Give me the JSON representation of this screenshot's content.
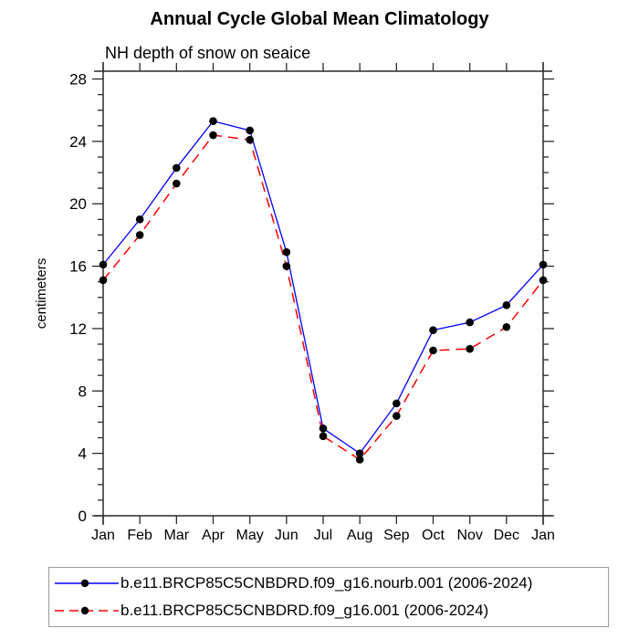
{
  "title": "Annual Cycle Global Mean Climatology",
  "subtitle": "NH depth of snow on seaice",
  "chart_data": {
    "type": "line",
    "x": [
      "Jan",
      "Feb",
      "Mar",
      "Apr",
      "May",
      "Jun",
      "Jul",
      "Aug",
      "Sep",
      "Oct",
      "Nov",
      "Dec",
      "Jan"
    ],
    "xlabel": "",
    "ylabel": "centimeters",
    "ylim": [
      0,
      28.5
    ],
    "yticks": [
      0,
      4,
      8,
      12,
      16,
      20,
      24,
      28
    ],
    "minor_tick_step": 1,
    "grid": false,
    "legend_position": "bottom",
    "marker": "filled-circle",
    "marker_color": "#000000",
    "series": [
      {
        "name": "b.e11.BRCP85C5CNBDRD.f09_g16.nourb.001 (2006-2024)",
        "color": "#0000ff",
        "style": "solid",
        "values": [
          16.1,
          19.0,
          22.3,
          25.3,
          24.7,
          16.9,
          5.6,
          4.0,
          7.2,
          11.9,
          12.4,
          13.5,
          16.1
        ]
      },
      {
        "name": "b.e11.BRCP85C5CNBDRD.f09_g16.001 (2006-2024)",
        "color": "#ff0000",
        "style": "dashed",
        "values": [
          15.1,
          18.0,
          21.3,
          24.4,
          24.1,
          16.0,
          5.1,
          3.6,
          6.4,
          10.6,
          10.7,
          12.1,
          15.1
        ]
      }
    ]
  },
  "colors": {
    "axis": "#2a2a2a",
    "background": "#ffffff",
    "legend_border": "#999999",
    "blue_series": "#0000ff",
    "red_series": "#ff0000",
    "marker": "#000000"
  }
}
